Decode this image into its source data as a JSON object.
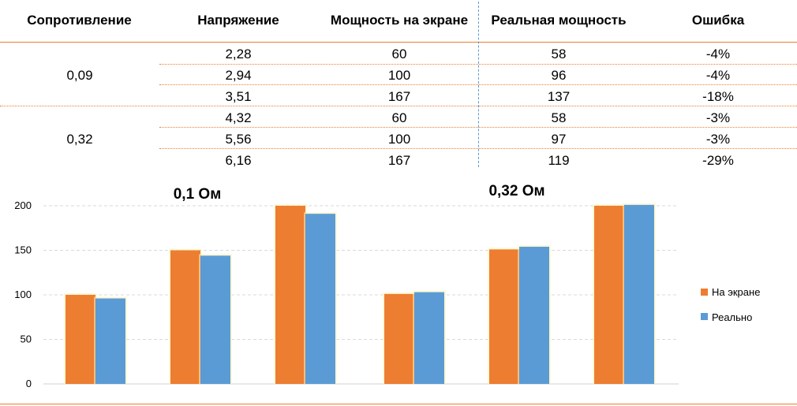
{
  "table": {
    "headers": [
      "Сопротивление",
      "Напряжение",
      "Мощность на экране",
      "Реальная мощность",
      "Ошибка"
    ],
    "groups": [
      {
        "resistance": "0,09",
        "rows": [
          {
            "voltage": "2,28",
            "screen_power": "60",
            "real_power": "58",
            "error": "-4%"
          },
          {
            "voltage": "2,94",
            "screen_power": "100",
            "real_power": "96",
            "error": "-4%"
          },
          {
            "voltage": "3,51",
            "screen_power": "167",
            "real_power": "137",
            "error": "-18%"
          }
        ]
      },
      {
        "resistance": "0,32",
        "rows": [
          {
            "voltage": "4,32",
            "screen_power": "60",
            "real_power": "58",
            "error": "-3%"
          },
          {
            "voltage": "5,56",
            "screen_power": "100",
            "real_power": "97",
            "error": "-3%"
          },
          {
            "voltage": "6,16",
            "screen_power": "167",
            "real_power": "119",
            "error": "-29%"
          }
        ]
      }
    ]
  },
  "colors": {
    "screen": "#ED7D31",
    "real": "#5B9BD5",
    "rule": "#ED7D31",
    "divider": "#5B9BD5",
    "grid": "#D9D9D9"
  },
  "chart_data": [
    {
      "type": "bar",
      "title": "0,1 Ом",
      "categories": [
        "",
        "",
        ""
      ],
      "series": [
        {
          "name": "На экране",
          "values": [
            100,
            150,
            200
          ]
        },
        {
          "name": "Реально",
          "values": [
            96,
            144,
            191
          ]
        }
      ],
      "yticks": [
        0,
        50,
        100,
        150,
        200
      ],
      "ylim": [
        0,
        200
      ],
      "grid": true,
      "legend": "none"
    },
    {
      "type": "bar",
      "title": "0,32 Ом",
      "categories": [
        "",
        "",
        ""
      ],
      "series": [
        {
          "name": "На экране",
          "values": [
            101,
            151,
            200
          ]
        },
        {
          "name": "Реально",
          "values": [
            103,
            154,
            201
          ]
        }
      ],
      "ylim": [
        0,
        200
      ],
      "grid": true,
      "legend": "right"
    }
  ]
}
